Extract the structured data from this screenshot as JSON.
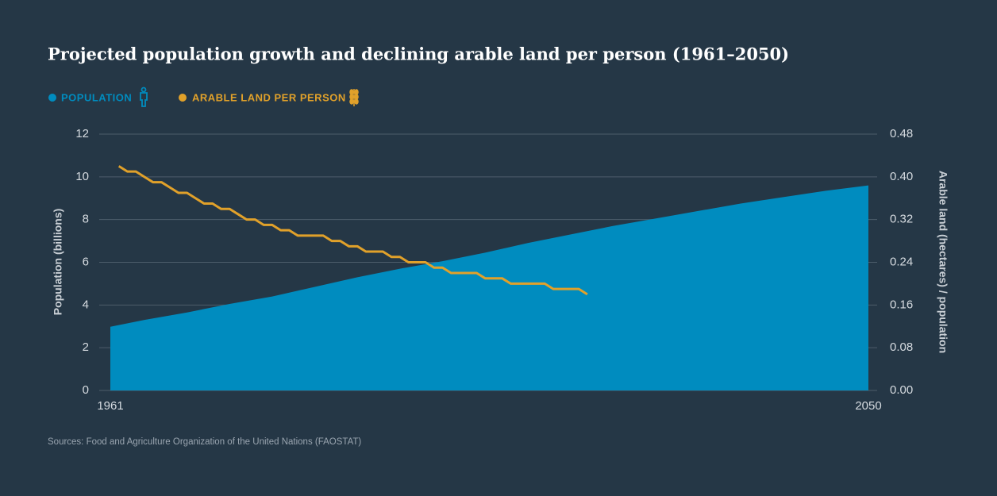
{
  "chart_data": {
    "type": "area",
    "title": "Projected population growth and declining arable land per person (1961–2050)",
    "source": "Sources: Food and Agriculture Organization of the United Nations (FAOSTAT)",
    "y_label": "Population (billions)",
    "y2_label": "Arable land (hectares) / population",
    "xlim": [
      1961,
      2050
    ],
    "xticks": [
      1961,
      2050
    ],
    "ylim": [
      0,
      12
    ],
    "yticks": [
      0,
      2,
      4,
      6,
      8,
      10,
      12
    ],
    "y2lim": [
      0,
      0.48
    ],
    "y2ticks": [
      {
        "value": 0,
        "label": "0.00"
      },
      {
        "value": 0.08,
        "label": "0.08"
      },
      {
        "value": 0.16,
        "label": "0.16"
      },
      {
        "value": 0.24,
        "label": "0.24"
      },
      {
        "value": 0.32,
        "label": "0.32"
      },
      {
        "value": 0.4,
        "label": "0.40"
      },
      {
        "value": 0.48,
        "label": "0.48"
      }
    ],
    "grid": true,
    "series": [
      {
        "name": "POPULATION",
        "type": "area",
        "color": "#008cbf",
        "x": [
          1961,
          1965,
          1970,
          1975,
          1980,
          1985,
          1990,
          1995,
          2000,
          2005,
          2010,
          2015,
          2020,
          2025,
          2030,
          2035,
          2040,
          2045,
          2050
        ],
        "values": [
          2.98,
          3.3,
          3.65,
          4.05,
          4.4,
          4.85,
          5.3,
          5.7,
          6.05,
          6.45,
          6.9,
          7.3,
          7.7,
          8.05,
          8.4,
          8.75,
          9.05,
          9.35,
          9.6
        ]
      },
      {
        "name": "ARABLE LAND PER PERSON",
        "type": "line",
        "color": "#e1a12a",
        "axis": "y2",
        "x": [
          1962,
          1963,
          1964,
          1965,
          1966,
          1967,
          1968,
          1969,
          1970,
          1971,
          1972,
          1973,
          1974,
          1975,
          1976,
          1977,
          1978,
          1979,
          1980,
          1981,
          1982,
          1983,
          1984,
          1985,
          1986,
          1987,
          1988,
          1989,
          1990,
          1991,
          1992,
          1993,
          1994,
          1995,
          1996,
          1997,
          1998,
          1999,
          2000,
          2001,
          2002,
          2003,
          2004,
          2005,
          2006,
          2007,
          2008,
          2009,
          2010,
          2011,
          2012,
          2013,
          2014,
          2015,
          2016,
          2017
        ],
        "values": [
          0.42,
          0.41,
          0.41,
          0.4,
          0.39,
          0.39,
          0.38,
          0.37,
          0.37,
          0.36,
          0.35,
          0.35,
          0.34,
          0.34,
          0.33,
          0.32,
          0.32,
          0.31,
          0.31,
          0.3,
          0.3,
          0.29,
          0.29,
          0.29,
          0.29,
          0.28,
          0.28,
          0.27,
          0.27,
          0.26,
          0.26,
          0.26,
          0.25,
          0.25,
          0.24,
          0.24,
          0.24,
          0.23,
          0.23,
          0.22,
          0.22,
          0.22,
          0.22,
          0.21,
          0.21,
          0.21,
          0.2,
          0.2,
          0.2,
          0.2,
          0.2,
          0.19,
          0.19,
          0.19,
          0.19,
          0.18
        ]
      }
    ]
  }
}
